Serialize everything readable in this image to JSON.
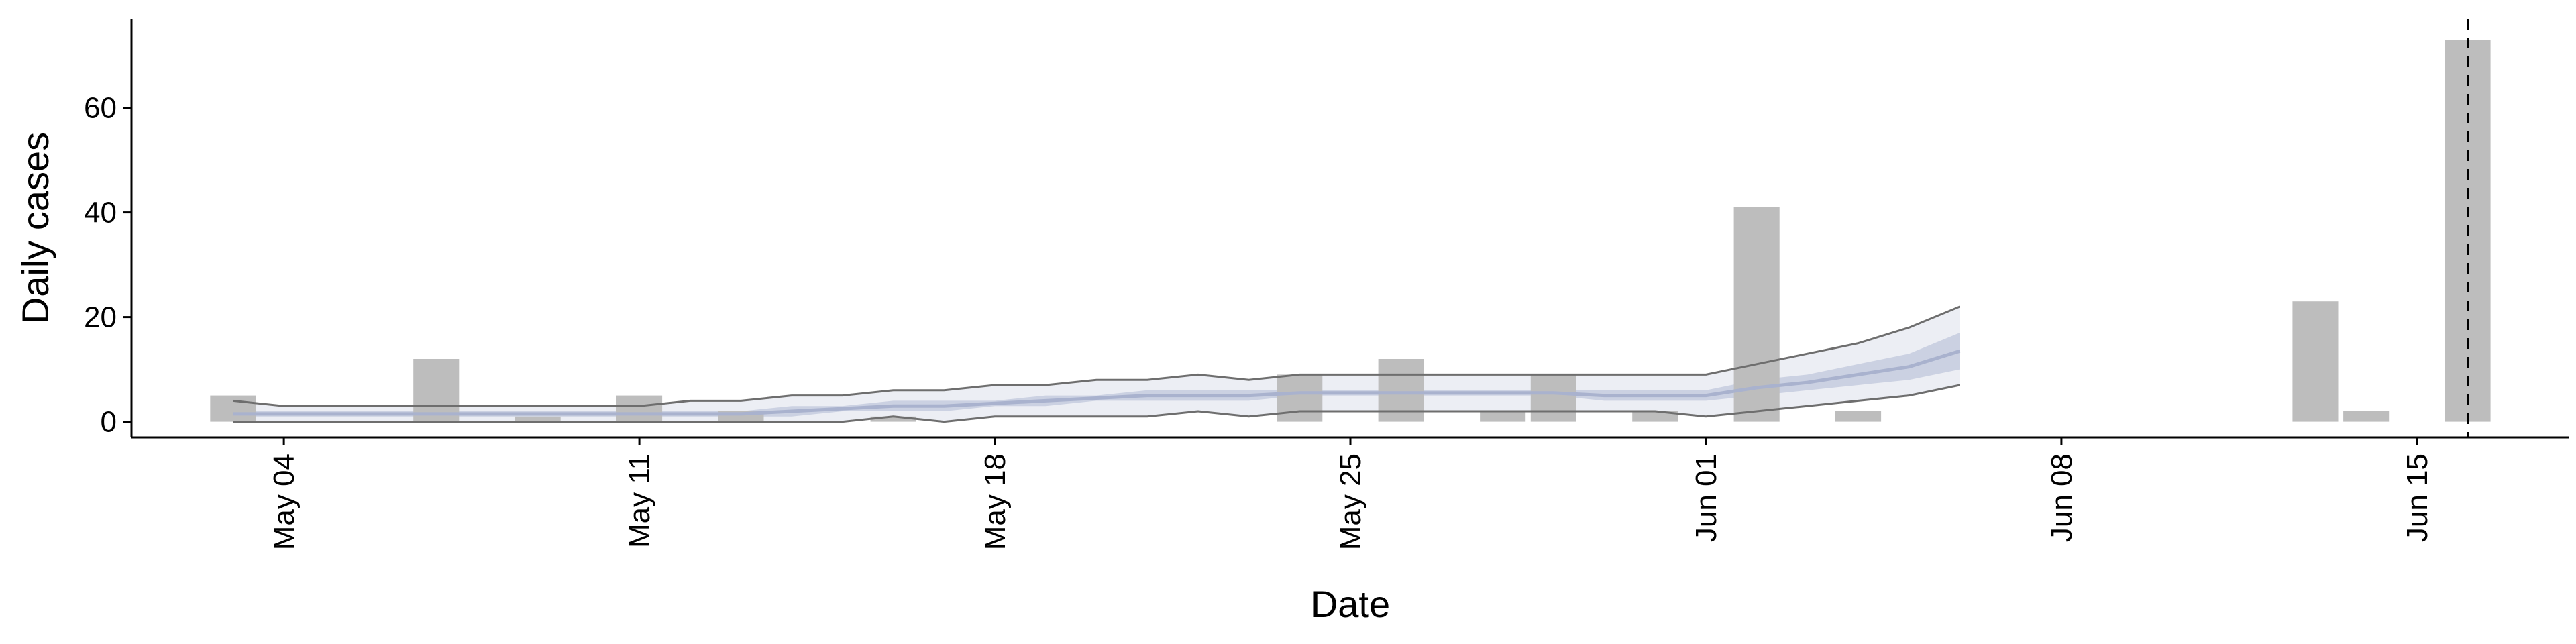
{
  "chart_data": {
    "type": "bar",
    "xlabel": "Date",
    "ylabel": "Daily cases",
    "x_axis_type": "date",
    "xlim": [
      "2020-05-01",
      "2020-06-18"
    ],
    "ylim": [
      -3,
      77
    ],
    "y_ticks": [
      0,
      20,
      40,
      60
    ],
    "x_ticks": [
      {
        "date": "2020-05-04",
        "label": "May 04"
      },
      {
        "date": "2020-05-11",
        "label": "May 11"
      },
      {
        "date": "2020-05-18",
        "label": "May 18"
      },
      {
        "date": "2020-05-25",
        "label": "May 25"
      },
      {
        "date": "2020-06-01",
        "label": "Jun 01"
      },
      {
        "date": "2020-06-08",
        "label": "Jun 08"
      },
      {
        "date": "2020-06-15",
        "label": "Jun 15"
      }
    ],
    "grid": false,
    "legend": "none",
    "reference_line": {
      "date": "2020-06-16",
      "style": "dashed"
    },
    "bars": {
      "color": "#bdbdbd",
      "dates": [
        "2020-05-03",
        "2020-05-07",
        "2020-05-09",
        "2020-05-11",
        "2020-05-13",
        "2020-05-16",
        "2020-05-24",
        "2020-05-26",
        "2020-05-28",
        "2020-05-29",
        "2020-05-31",
        "2020-06-02",
        "2020-06-04",
        "2020-06-13",
        "2020-06-14",
        "2020-06-16"
      ],
      "values": [
        5,
        12,
        1,
        5,
        2,
        1,
        9,
        12,
        2,
        9,
        2,
        41,
        2,
        23,
        2,
        73
      ]
    },
    "series": [
      {
        "type": "line",
        "color": "#6e6e6e",
        "dates": [
          "2020-05-03",
          "2020-05-04",
          "2020-05-05",
          "2020-05-06",
          "2020-05-07",
          "2020-05-08",
          "2020-05-09",
          "2020-05-10",
          "2020-05-11",
          "2020-05-12",
          "2020-05-13",
          "2020-05-14",
          "2020-05-15",
          "2020-05-16",
          "2020-05-17",
          "2020-05-18",
          "2020-05-19",
          "2020-05-20",
          "2020-05-21",
          "2020-05-22",
          "2020-05-23",
          "2020-05-24",
          "2020-05-25",
          "2020-05-26",
          "2020-05-27",
          "2020-05-28",
          "2020-05-29",
          "2020-05-30",
          "2020-05-31",
          "2020-06-01",
          "2020-06-02",
          "2020-06-03",
          "2020-06-04",
          "2020-06-05",
          "2020-06-06"
        ],
        "values": [
          4,
          3,
          3,
          3,
          3,
          3,
          3,
          3,
          3,
          4,
          4,
          5,
          5,
          6,
          6,
          7,
          7,
          8,
          8,
          9,
          8,
          9,
          9,
          9,
          9,
          9,
          9,
          9,
          9,
          9,
          11,
          13,
          15,
          18,
          22
        ]
      },
      {
        "type": "line",
        "color": "#6e6e6e",
        "dates": [
          "2020-05-03",
          "2020-05-04",
          "2020-05-05",
          "2020-05-06",
          "2020-05-07",
          "2020-05-08",
          "2020-05-09",
          "2020-05-10",
          "2020-05-11",
          "2020-05-12",
          "2020-05-13",
          "2020-05-14",
          "2020-05-15",
          "2020-05-16",
          "2020-05-17",
          "2020-05-18",
          "2020-05-19",
          "2020-05-20",
          "2020-05-21",
          "2020-05-22",
          "2020-05-23",
          "2020-05-24",
          "2020-05-25",
          "2020-05-26",
          "2020-05-27",
          "2020-05-28",
          "2020-05-29",
          "2020-05-30",
          "2020-05-31",
          "2020-06-01",
          "2020-06-02",
          "2020-06-03",
          "2020-06-04",
          "2020-06-05",
          "2020-06-06"
        ],
        "values": [
          0,
          0,
          0,
          0,
          0,
          0,
          0,
          0,
          0,
          0,
          0,
          0,
          0,
          1,
          0,
          1,
          1,
          1,
          1,
          2,
          1,
          2,
          2,
          2,
          2,
          2,
          2,
          2,
          2,
          1,
          2,
          3,
          4,
          5,
          7
        ]
      },
      {
        "type": "area",
        "color": "#e9ebf2",
        "dates": [
          "2020-05-03",
          "2020-05-04",
          "2020-05-05",
          "2020-05-06",
          "2020-05-07",
          "2020-05-08",
          "2020-05-09",
          "2020-05-10",
          "2020-05-11",
          "2020-05-12",
          "2020-05-13",
          "2020-05-14",
          "2020-05-15",
          "2020-05-16",
          "2020-05-17",
          "2020-05-18",
          "2020-05-19",
          "2020-05-20",
          "2020-05-21",
          "2020-05-22",
          "2020-05-23",
          "2020-05-24",
          "2020-05-25",
          "2020-05-26",
          "2020-05-27",
          "2020-05-28",
          "2020-05-29",
          "2020-05-30",
          "2020-05-31",
          "2020-06-01",
          "2020-06-02",
          "2020-06-03",
          "2020-06-04",
          "2020-06-05",
          "2020-06-06"
        ],
        "lower": [
          0,
          0,
          0,
          0,
          0,
          0,
          0,
          0,
          0,
          0,
          0,
          0,
          0,
          1,
          0,
          1,
          1,
          1,
          1,
          2,
          1,
          2,
          2,
          2,
          2,
          2,
          2,
          2,
          2,
          1,
          2,
          3,
          4,
          5,
          7
        ],
        "upper": [
          4,
          3,
          3,
          3,
          3,
          3,
          3,
          3,
          3,
          4,
          4,
          5,
          5,
          6,
          6,
          7,
          7,
          8,
          8,
          9,
          8,
          9,
          9,
          9,
          9,
          9,
          9,
          9,
          9,
          9,
          11,
          13,
          15,
          18,
          22
        ]
      },
      {
        "type": "area",
        "color": "#c5cbde",
        "dates": [
          "2020-05-03",
          "2020-05-04",
          "2020-05-05",
          "2020-05-06",
          "2020-05-07",
          "2020-05-08",
          "2020-05-09",
          "2020-05-10",
          "2020-05-11",
          "2020-05-12",
          "2020-05-13",
          "2020-05-14",
          "2020-05-15",
          "2020-05-16",
          "2020-05-17",
          "2020-05-18",
          "2020-05-19",
          "2020-05-20",
          "2020-05-21",
          "2020-05-22",
          "2020-05-23",
          "2020-05-24",
          "2020-05-25",
          "2020-05-26",
          "2020-05-27",
          "2020-05-28",
          "2020-05-29",
          "2020-05-30",
          "2020-05-31",
          "2020-06-01",
          "2020-06-02",
          "2020-06-03",
          "2020-06-04",
          "2020-06-05",
          "2020-06-06"
        ],
        "lower": [
          1,
          1,
          1,
          1,
          1,
          1,
          1,
          1,
          1,
          1,
          1,
          1,
          2,
          2,
          2,
          3,
          3,
          4,
          4,
          4,
          4,
          5,
          5,
          5,
          5,
          5,
          5,
          4,
          4,
          4,
          5,
          6,
          7,
          8,
          10
        ],
        "upper": [
          2,
          2,
          2,
          2,
          2,
          2,
          2,
          2,
          2,
          2,
          2,
          3,
          3,
          4,
          4,
          4,
          5,
          5,
          6,
          6,
          6,
          6,
          6,
          6,
          6,
          6,
          6,
          6,
          6,
          6,
          8,
          9,
          11,
          13,
          17
        ]
      },
      {
        "type": "line",
        "color": "#a9b2ce",
        "dates": [
          "2020-05-03",
          "2020-05-04",
          "2020-05-05",
          "2020-05-06",
          "2020-05-07",
          "2020-05-08",
          "2020-05-09",
          "2020-05-10",
          "2020-05-11",
          "2020-05-12",
          "2020-05-13",
          "2020-05-14",
          "2020-05-15",
          "2020-05-16",
          "2020-05-17",
          "2020-05-18",
          "2020-05-19",
          "2020-05-20",
          "2020-05-21",
          "2020-05-22",
          "2020-05-23",
          "2020-05-24",
          "2020-05-25",
          "2020-05-26",
          "2020-05-27",
          "2020-05-28",
          "2020-05-29",
          "2020-05-30",
          "2020-05-31",
          "2020-06-01",
          "2020-06-02",
          "2020-06-03",
          "2020-06-04",
          "2020-06-05",
          "2020-06-06"
        ],
        "values": [
          1.5,
          1.5,
          1.5,
          1.5,
          1.5,
          1.5,
          1.5,
          1.5,
          1.5,
          1.5,
          1.5,
          2,
          2.5,
          3,
          3,
          3.5,
          4,
          4.5,
          5,
          5,
          5,
          5.5,
          5.5,
          5.5,
          5.5,
          5.5,
          5.5,
          5,
          5,
          5,
          6.5,
          7.5,
          9,
          10.5,
          13.5
        ]
      }
    ]
  }
}
